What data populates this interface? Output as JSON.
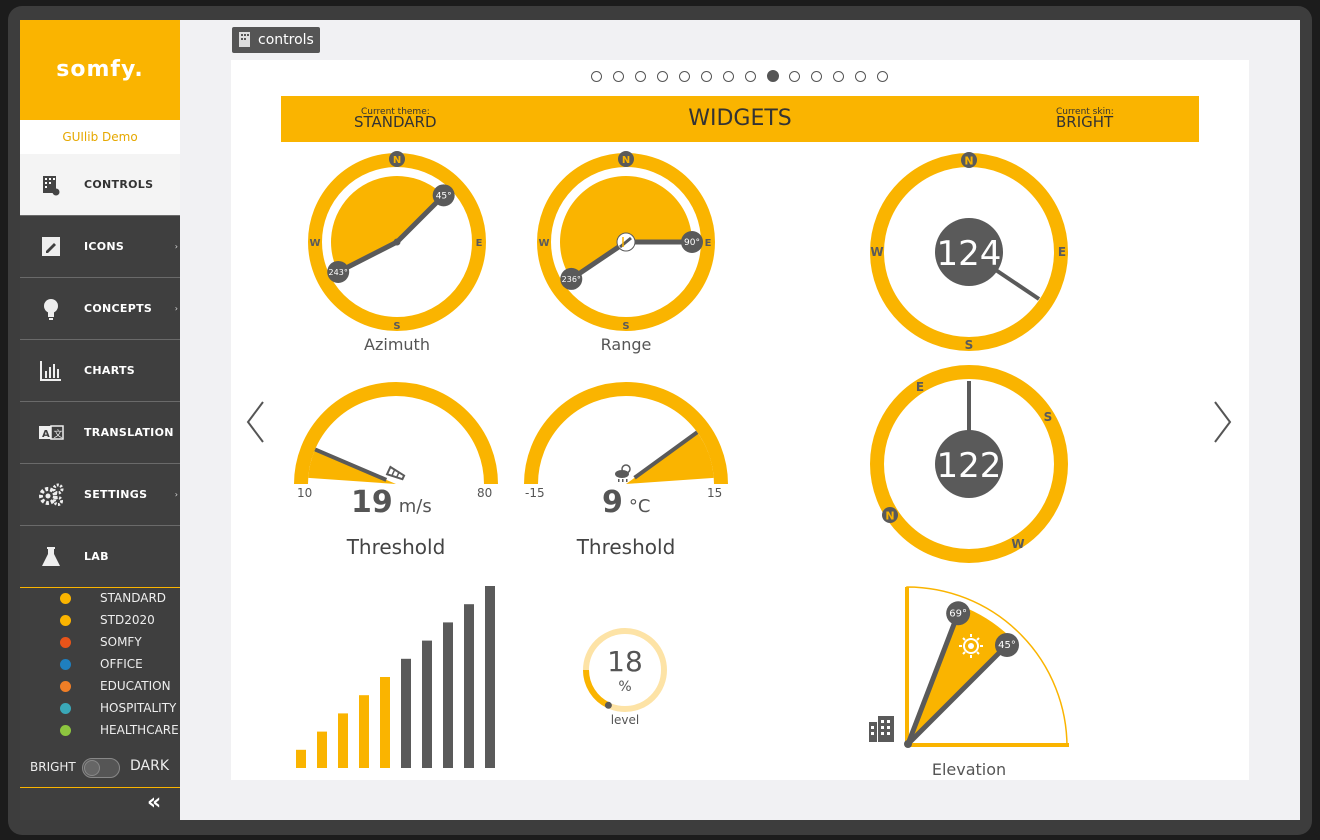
{
  "app": {
    "brand": "somfy.",
    "demo_label": "GUIlib Demo"
  },
  "sidebar": {
    "items": [
      {
        "label": "CONTROLS",
        "icon": "controls-icon",
        "active": true
      },
      {
        "label": "ICONS",
        "icon": "pencil-icon",
        "submenu": true
      },
      {
        "label": "CONCEPTS",
        "icon": "lightbulb-icon",
        "submenu": true
      },
      {
        "label": "CHARTS",
        "icon": "bar-chart-icon"
      },
      {
        "label": "TRANSLATION",
        "icon": "translate-icon"
      },
      {
        "label": "SETTINGS",
        "icon": "gears-icon",
        "submenu": true
      },
      {
        "label": "LAB",
        "icon": "flask-icon"
      }
    ],
    "submenu_arrow": "›",
    "themes": [
      {
        "label": "STANDARD",
        "color": "#fab400"
      },
      {
        "label": "STD2020",
        "color": "#fab400"
      },
      {
        "label": "SOMFY",
        "color": "#e8541a"
      },
      {
        "label": "OFFICE",
        "color": "#1f7fbf"
      },
      {
        "label": "EDUCATION",
        "color": "#f07e26"
      },
      {
        "label": "HOSPITALITY",
        "color": "#3aa8b8"
      },
      {
        "label": "HEALTHCARE",
        "color": "#8dc63f"
      }
    ],
    "mode_bright": "BRIGHT",
    "mode_dark": "DARK",
    "collapse_glyph": "«"
  },
  "breadcrumb": {
    "label": "controls"
  },
  "pager": {
    "count": 14,
    "active_index": 8
  },
  "banner": {
    "theme_caption": "Current theme:",
    "theme_value": "STANDARD",
    "title": "WIDGETS",
    "skin_caption": "Current skin:",
    "skin_value": "BRIGHT"
  },
  "compass": {
    "n": "N",
    "e": "E",
    "s": "S",
    "w": "W"
  },
  "azimuth": {
    "label": "Azimuth",
    "start": "243°",
    "end": "45°"
  },
  "range": {
    "label": "Range",
    "start": "236°",
    "end": "90°"
  },
  "dial_top": {
    "value": "124"
  },
  "dial_bottom": {
    "value": "122"
  },
  "wind": {
    "min": "10",
    "max": "80",
    "value": "19",
    "unit": "m/s",
    "label": "Threshold"
  },
  "temp": {
    "min": "-15",
    "max": "15",
    "value": "9",
    "unit": "°C",
    "label": "Threshold"
  },
  "level": {
    "value": "18",
    "unit": "%",
    "label": "level"
  },
  "elevation": {
    "label": "Elevation",
    "high": "69°",
    "low": "45°"
  },
  "bars": {
    "values": [
      1,
      2,
      3,
      4,
      5,
      6,
      7,
      8,
      9,
      10
    ],
    "highlighted": 5
  },
  "colors": {
    "accent": "#fab400",
    "dark": "#5a5a5a"
  }
}
